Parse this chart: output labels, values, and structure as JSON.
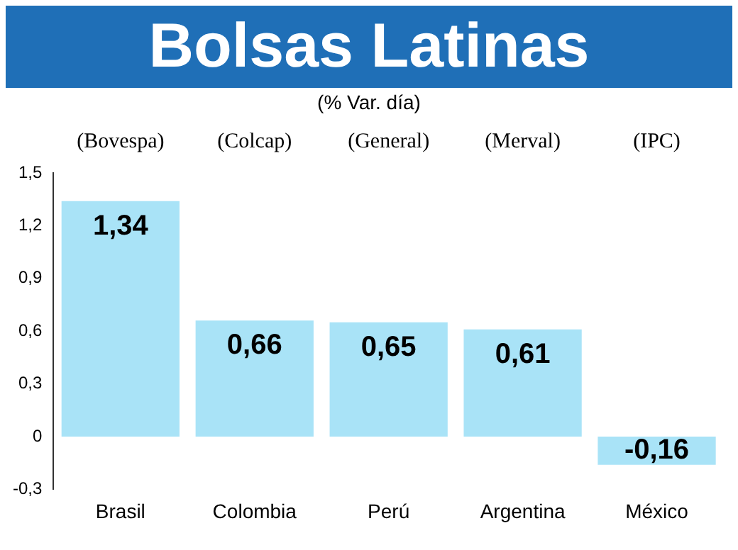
{
  "chart_data": {
    "type": "bar",
    "title": "Bolsas Latinas",
    "subtitle": "(% Var. día)",
    "categories": [
      "Brasil",
      "Colombia",
      "Perú",
      "Argentina",
      "México"
    ],
    "values": [
      1.34,
      0.66,
      0.65,
      0.61,
      -0.16
    ],
    "value_labels": [
      "1,34",
      "0,66",
      "0,65",
      "0,61",
      "-0,16"
    ],
    "color": "#a9e3f7",
    "ylim": [
      -0.3,
      1.5
    ],
    "yticks": [
      {
        "value": -0.3,
        "label": "-0,3"
      },
      {
        "value": 0,
        "label": "0"
      },
      {
        "value": 0.3,
        "label": "0,3"
      },
      {
        "value": 0.6,
        "label": "0,6"
      },
      {
        "value": 0.9,
        "label": "0,9"
      },
      {
        "value": 1.2,
        "label": "1,2"
      },
      {
        "value": 1.5,
        "label": "1,5"
      }
    ],
    "annotations": [
      "(Bovespa)",
      "(Colcap)",
      "(General)",
      "(Merval)",
      "(IPC)"
    ],
    "grid": false,
    "legend": false
  }
}
